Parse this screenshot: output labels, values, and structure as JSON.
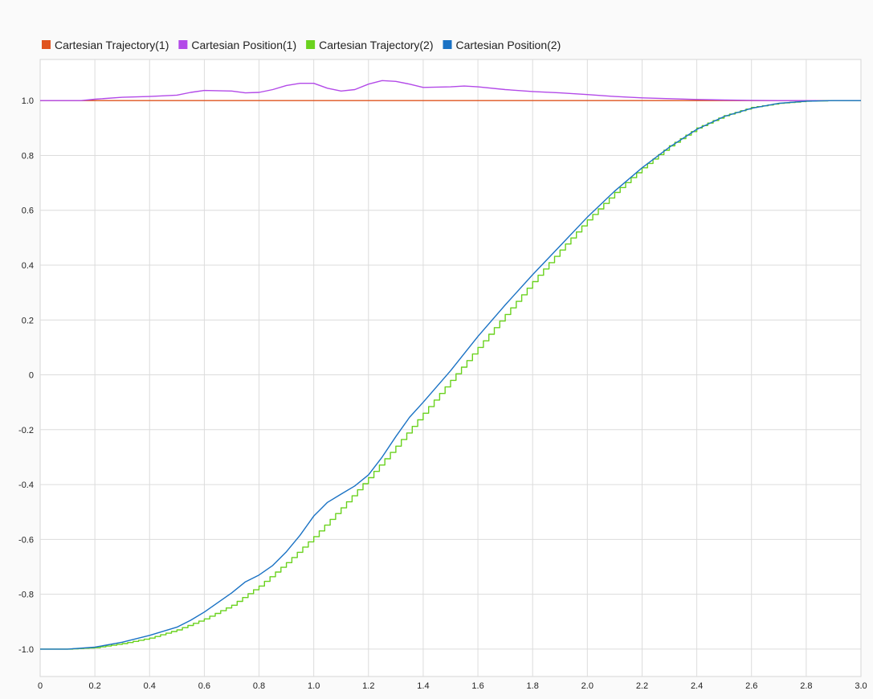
{
  "chart_data": {
    "type": "line",
    "title": "",
    "xlabel": "",
    "ylabel": "",
    "xlim": [
      0,
      3.0
    ],
    "ylim": [
      -1.1,
      1.15
    ],
    "grid": true,
    "legend_position": "top-left",
    "x_ticks": [
      0,
      0.2,
      0.4,
      0.6,
      0.8,
      1.0,
      1.2,
      1.4,
      1.6,
      1.8,
      2.0,
      2.2,
      2.4,
      2.6,
      2.8,
      3.0
    ],
    "x_tick_labels": [
      "0",
      "0.2",
      "0.4",
      "0.6",
      "0.8",
      "1.0",
      "1.2",
      "1.4",
      "1.6",
      "1.8",
      "2.0",
      "2.2",
      "2.4",
      "2.6",
      "2.8",
      "3.0"
    ],
    "y_ticks": [
      1.0,
      0.8,
      0.6,
      0.4,
      0.2,
      0,
      -0.2,
      -0.4,
      -0.6,
      -0.8,
      -1.0
    ],
    "y_tick_labels": [
      "1.0",
      "0.8",
      "0.6",
      "0.4",
      "0.2",
      "0",
      "-0.2",
      "-0.4",
      "-0.6",
      "-0.8",
      "-1.0"
    ],
    "series": [
      {
        "name": "Cartesian Trajectory(1)",
        "color": "#e0541f",
        "stepped": false,
        "x": [
          0,
          3.0
        ],
        "y": [
          1.0,
          1.0
        ]
      },
      {
        "name": "Cartesian Position(1)",
        "color": "#b34ae8",
        "stepped": false,
        "x": [
          0,
          0.15,
          0.2,
          0.3,
          0.4,
          0.5,
          0.55,
          0.6,
          0.7,
          0.75,
          0.8,
          0.85,
          0.9,
          0.95,
          1.0,
          1.05,
          1.1,
          1.15,
          1.2,
          1.25,
          1.3,
          1.35,
          1.4,
          1.5,
          1.55,
          1.6,
          1.7,
          1.8,
          1.9,
          2.0,
          2.1,
          2.2,
          2.3,
          2.4,
          2.5,
          2.6,
          2.7,
          2.8,
          3.0
        ],
        "y": [
          1.0,
          1.0,
          1.005,
          1.012,
          1.015,
          1.02,
          1.03,
          1.037,
          1.035,
          1.028,
          1.03,
          1.04,
          1.055,
          1.063,
          1.063,
          1.045,
          1.035,
          1.04,
          1.06,
          1.073,
          1.07,
          1.06,
          1.048,
          1.05,
          1.053,
          1.05,
          1.04,
          1.033,
          1.028,
          1.022,
          1.015,
          1.01,
          1.007,
          1.004,
          1.002,
          1.001,
          1.0,
          1.0,
          1.0
        ]
      },
      {
        "name": "Cartesian Trajectory(2)",
        "color": "#6ad21e",
        "stepped": true,
        "x": [
          0,
          0.1,
          0.2,
          0.3,
          0.4,
          0.5,
          0.6,
          0.7,
          0.8,
          0.9,
          1.0,
          1.1,
          1.2,
          1.3,
          1.4,
          1.5,
          1.6,
          1.7,
          1.8,
          1.9,
          2.0,
          2.1,
          2.2,
          2.3,
          2.4,
          2.5,
          2.6,
          2.7,
          2.8,
          2.9,
          3.0
        ],
        "y": [
          -1.0,
          -1.0,
          -0.995,
          -0.98,
          -0.96,
          -0.93,
          -0.89,
          -0.84,
          -0.77,
          -0.685,
          -0.59,
          -0.485,
          -0.375,
          -0.26,
          -0.14,
          -0.02,
          0.1,
          0.22,
          0.34,
          0.455,
          0.565,
          0.665,
          0.755,
          0.835,
          0.9,
          0.945,
          0.975,
          0.99,
          0.998,
          1.0,
          1.0
        ]
      },
      {
        "name": "Cartesian Position(2)",
        "color": "#1a72c4",
        "stepped": false,
        "x": [
          0,
          0.1,
          0.2,
          0.3,
          0.4,
          0.5,
          0.55,
          0.6,
          0.7,
          0.75,
          0.8,
          0.85,
          0.9,
          0.95,
          1.0,
          1.05,
          1.1,
          1.15,
          1.2,
          1.25,
          1.3,
          1.35,
          1.4,
          1.5,
          1.6,
          1.7,
          1.8,
          1.9,
          2.0,
          2.1,
          2.2,
          2.3,
          2.4,
          2.5,
          2.6,
          2.7,
          2.8,
          2.9,
          3.0
        ],
        "y": [
          -1.0,
          -1.0,
          -0.993,
          -0.975,
          -0.95,
          -0.92,
          -0.895,
          -0.865,
          -0.795,
          -0.755,
          -0.73,
          -0.695,
          -0.645,
          -0.585,
          -0.515,
          -0.465,
          -0.435,
          -0.405,
          -0.365,
          -0.3,
          -0.225,
          -0.155,
          -0.1,
          0.015,
          0.14,
          0.255,
          0.365,
          0.47,
          0.575,
          0.67,
          0.755,
          0.83,
          0.895,
          0.942,
          0.972,
          0.99,
          0.998,
          1.0,
          1.0
        ]
      }
    ]
  }
}
